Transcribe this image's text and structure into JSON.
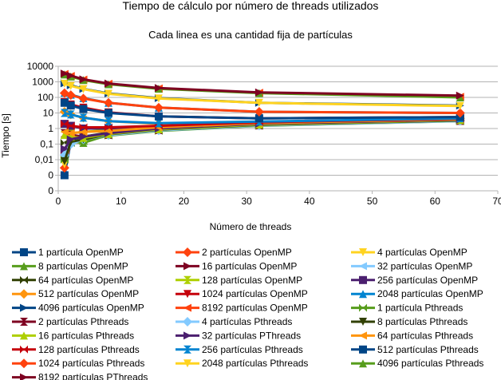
{
  "chart_data": {
    "type": "line",
    "title": "Tiempo de cálculo por número de threads utilizados",
    "subtitle": "Cada linea es una cantidad fija de partículas",
    "xlabel": "Número de threads",
    "ylabel": "Tiempo [s]",
    "xlim": [
      0,
      70
    ],
    "x_ticks": [
      0,
      10,
      20,
      30,
      40,
      50,
      60,
      70
    ],
    "y_scale": "log",
    "ylim": [
      0.0001,
      10000
    ],
    "y_ticks": [
      {
        "v": 0.0001,
        "label": "0"
      },
      {
        "v": 0.001,
        "label": "0"
      },
      {
        "v": 0.01,
        "label": "0,01"
      },
      {
        "v": 0.1,
        "label": "0,1"
      },
      {
        "v": 1,
        "label": "1"
      },
      {
        "v": 10,
        "label": "10"
      },
      {
        "v": 100,
        "label": "100"
      },
      {
        "v": 1000,
        "label": "1000"
      },
      {
        "v": 10000,
        "label": "10000"
      }
    ],
    "grid": "y-major",
    "legend_position": "bottom",
    "x": [
      1,
      2,
      4,
      8,
      16,
      32,
      64
    ],
    "series": [
      {
        "name": "1 partícula OpenMP",
        "color": "#004586",
        "marker": "square",
        "values": [
          0.001,
          0.15,
          0.3,
          0.5,
          1.0,
          1.6,
          3.2
        ]
      },
      {
        "name": "2 partículas OpenMP",
        "color": "#ff420e",
        "marker": "diamond",
        "values": [
          0.003,
          0.17,
          0.28,
          0.45,
          0.95,
          1.7,
          3.3
        ]
      },
      {
        "name": "4 partículas OpenMP",
        "color": "#ffd320",
        "marker": "tri-down",
        "values": [
          0.005,
          0.18,
          0.25,
          0.4,
          0.85,
          1.8,
          3.4
        ]
      },
      {
        "name": "8 partículas OpenMP",
        "color": "#579d1c",
        "marker": "tri-up",
        "values": [
          0.4,
          0.15,
          0.12,
          0.4,
          0.9,
          1.9,
          3.5
        ]
      },
      {
        "name": "16 partículas OpenMP",
        "color": "#7e0021",
        "marker": "tri-right",
        "values": [
          0.03,
          0.18,
          0.2,
          0.45,
          0.95,
          1.8,
          3.6
        ]
      },
      {
        "name": "32 partículas OpenMP",
        "color": "#83caff",
        "marker": "tri-left",
        "values": [
          0.02,
          0.12,
          0.25,
          0.5,
          1.0,
          2.0,
          3.8
        ]
      },
      {
        "name": "64 partículas OpenMP",
        "color": "#314004",
        "marker": "bowtie",
        "values": [
          0.12,
          0.2,
          0.3,
          0.55,
          1.05,
          2.1,
          3.9
        ]
      },
      {
        "name": "128 partículas OpenMP",
        "color": "#aecf00",
        "marker": "hourglass",
        "values": [
          0.4,
          0.5,
          0.6,
          0.8,
          1.2,
          2.2,
          4.0
        ]
      },
      {
        "name": "256 partículas OpenMP",
        "color": "#4b1f6f",
        "marker": "square",
        "values": [
          2.0,
          1.5,
          1.0,
          1.0,
          1.4,
          2.4,
          4.2
        ]
      },
      {
        "name": "512 partículas OpenMP",
        "color": "#ff950e",
        "marker": "diamond",
        "values": [
          12,
          8,
          5,
          3,
          2,
          2.5,
          4.5
        ]
      },
      {
        "name": "1024 partículas OpenMP",
        "color": "#c5000b",
        "marker": "tri-down",
        "values": [
          50,
          35,
          22,
          11,
          6,
          4.5,
          5.5
        ]
      },
      {
        "name": "2048 partículas OpenMP",
        "color": "#0084d1",
        "marker": "tri-up",
        "values": [
          200,
          150,
          90,
          45,
          22,
          12,
          10
        ]
      },
      {
        "name": "4096 partículas OpenMP",
        "color": "#004586",
        "marker": "tri-right",
        "values": [
          800,
          600,
          350,
          180,
          90,
          45,
          30
        ]
      },
      {
        "name": "8192 partículas OpenMP",
        "color": "#ff420e",
        "marker": "tri-left",
        "values": [
          3200,
          2400,
          1400,
          750,
          380,
          200,
          110
        ]
      },
      {
        "name": "1 partícula Pthreads",
        "color": "#579d1c",
        "marker": "bowtie",
        "values": [
          0.01,
          0.12,
          0.15,
          0.35,
          0.7,
          1.5,
          3.0
        ]
      },
      {
        "name": "2 partículas Pthreads",
        "color": "#7e0021",
        "marker": "hourglass",
        "values": [
          0.5,
          0.4,
          0.3,
          0.4,
          0.8,
          1.6,
          3.1
        ]
      },
      {
        "name": "4 partículas Pthreads",
        "color": "#83caff",
        "marker": "diamond",
        "values": [
          0.02,
          0.1,
          0.2,
          0.38,
          0.75,
          1.55,
          3.05
        ]
      },
      {
        "name": "8 partículas Pthreads",
        "color": "#314004",
        "marker": "tri-down",
        "values": [
          0.008,
          0.14,
          0.2,
          0.42,
          0.85,
          1.7,
          3.3
        ]
      },
      {
        "name": "16 partículas Pthreads",
        "color": "#aecf00",
        "marker": "tri-up",
        "values": [
          0.4,
          0.3,
          0.25,
          0.45,
          0.9,
          1.8,
          3.5
        ]
      },
      {
        "name": "32 partículas PThreads",
        "color": "#4b1f6f",
        "marker": "tri-right",
        "values": [
          0.05,
          0.2,
          0.3,
          0.5,
          1.0,
          2.0,
          3.7
        ]
      },
      {
        "name": "64 partículas Pthreads",
        "color": "#ff950e",
        "marker": "tri-left",
        "values": [
          0.6,
          0.5,
          0.6,
          0.7,
          1.2,
          2.2,
          4.0
        ]
      },
      {
        "name": "128 partículas Pthreads",
        "color": "#c5000b",
        "marker": "bowtie",
        "values": [
          2,
          1.5,
          1.2,
          1.2,
          1.5,
          2.5,
          4.3
        ]
      },
      {
        "name": "256 partículas Pthreads",
        "color": "#0084d1",
        "marker": "hourglass",
        "values": [
          10,
          8,
          5,
          3,
          2.2,
          2.8,
          4.6
        ]
      },
      {
        "name": "512 partículas Pthreads",
        "color": "#004586",
        "marker": "square",
        "values": [
          45,
          30,
          18,
          10,
          6,
          4.5,
          5.5
        ]
      },
      {
        "name": "1024 partículas Pthreads",
        "color": "#ff420e",
        "marker": "diamond",
        "values": [
          190,
          140,
          85,
          45,
          22,
          12,
          10
        ]
      },
      {
        "name": "2048 partículas Pthreads",
        "color": "#ffd320",
        "marker": "tri-down",
        "values": [
          750,
          550,
          340,
          170,
          85,
          45,
          28
        ]
      },
      {
        "name": "4096 partículas Pthreads",
        "color": "#579d1c",
        "marker": "tri-up",
        "values": [
          3000,
          2200,
          1300,
          700,
          360,
          190,
          100
        ]
      },
      {
        "name": "8192 partículas PThreads",
        "color": "#7e0021",
        "marker": "tri-right",
        "values": [
          3400,
          2500,
          1450,
          780,
          400,
          210,
          130
        ]
      }
    ]
  }
}
